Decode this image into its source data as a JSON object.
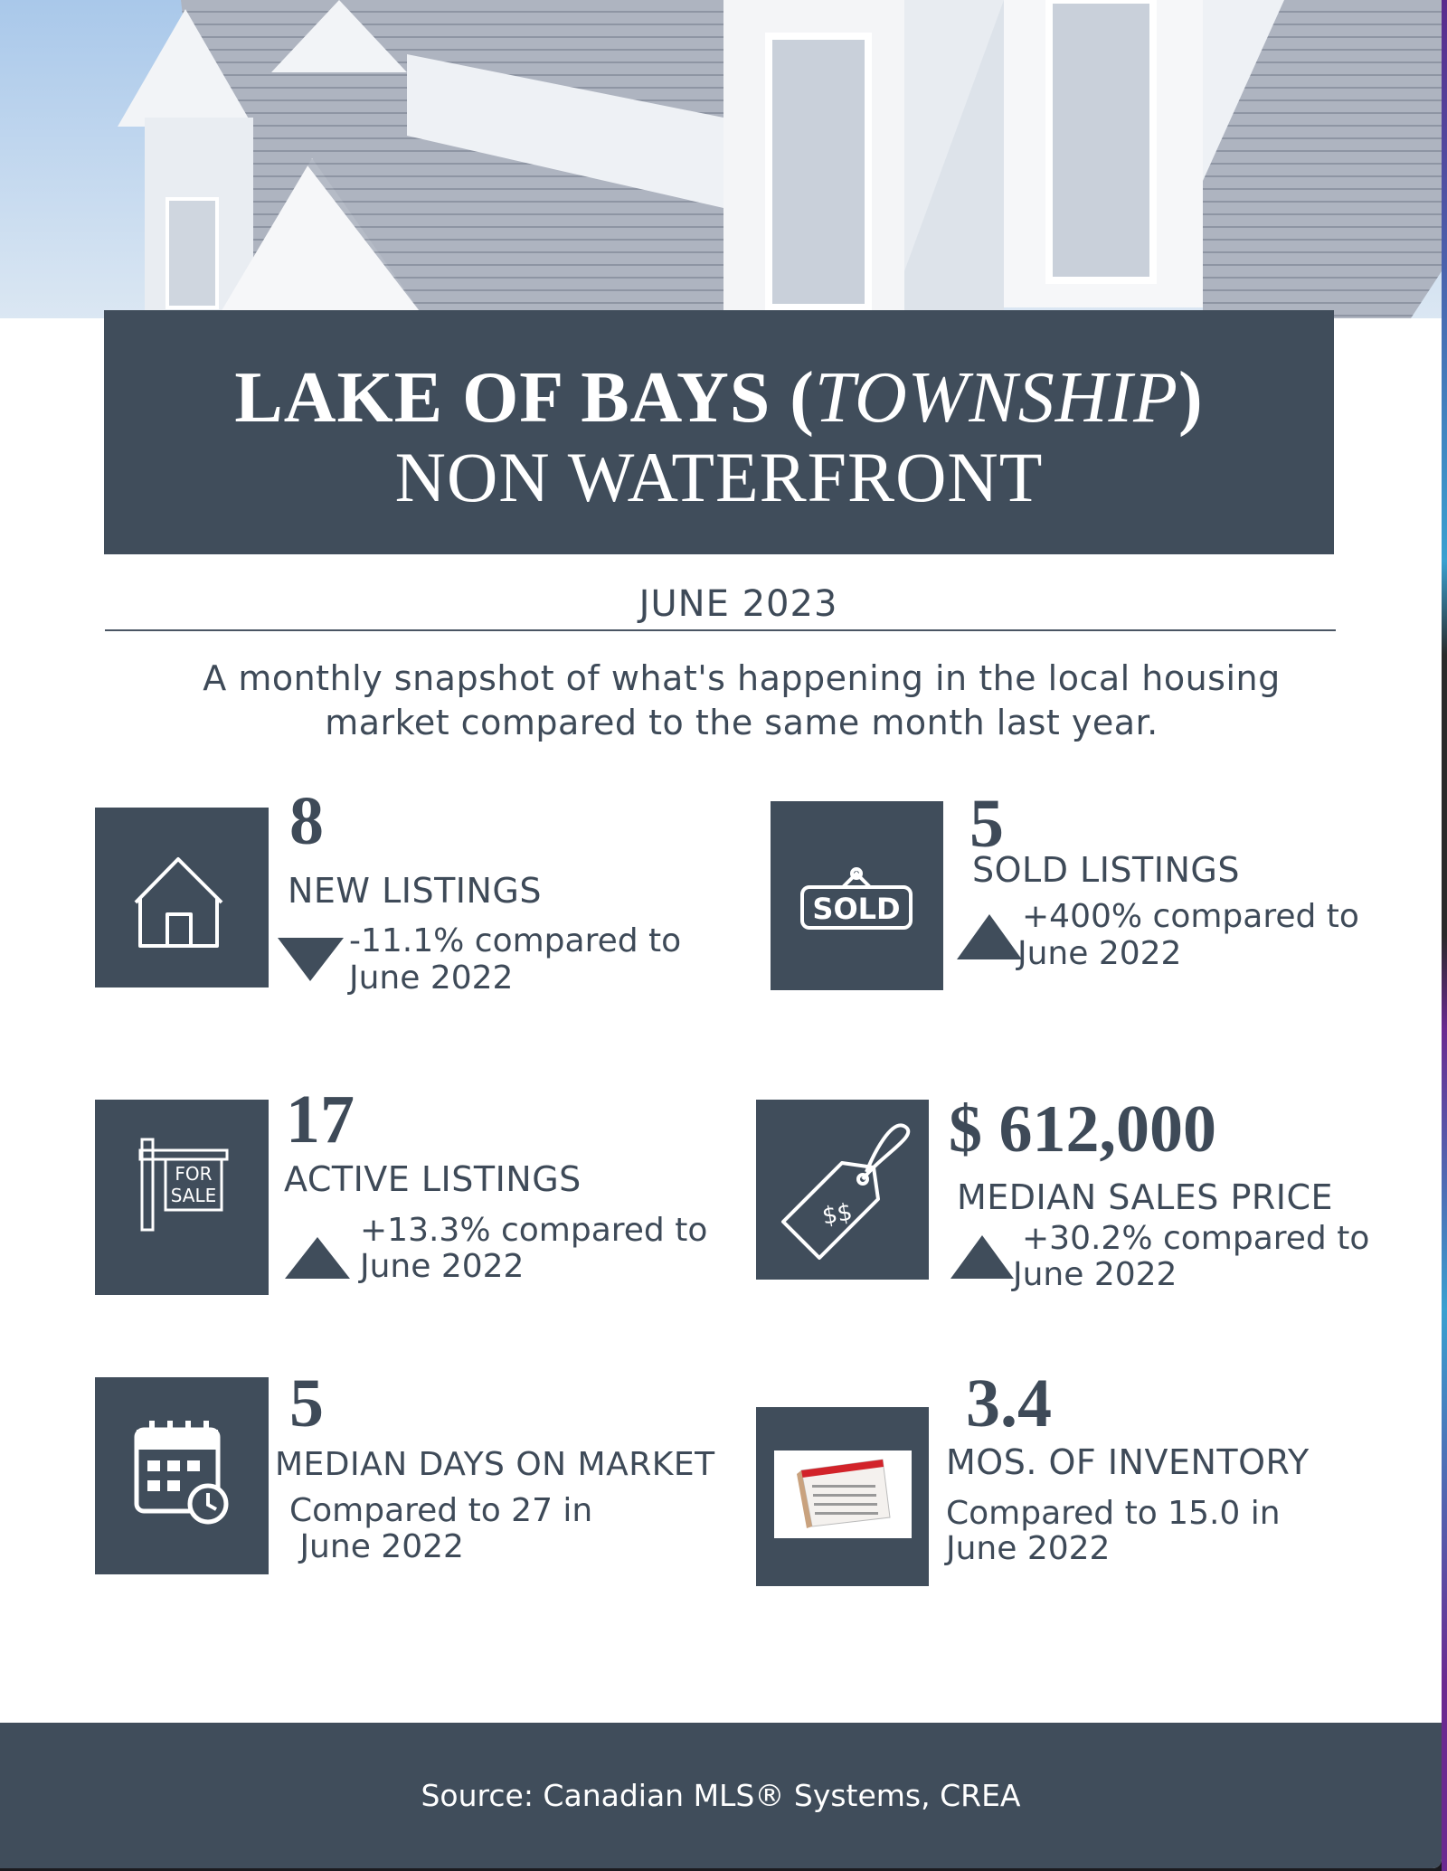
{
  "header": {
    "title_bold": "LAKE OF BAYS (",
    "title_italic": "TOWNSHIP",
    "title_close": ")",
    "subtitle": "NON WATERFRONT"
  },
  "month": "JUNE 2023",
  "intro": "A monthly snapshot of what's happening in the local housing market compared to the same month last year.",
  "colors": {
    "primary": "#404d5b",
    "text": "#3e4a58",
    "background": "#ffffff"
  },
  "stats": [
    {
      "value": "8",
      "label": "NEW  LISTINGS",
      "line1": "-11.1% compared to",
      "line2": "June 2022",
      "trend": "down",
      "icon": "house-icon"
    },
    {
      "value": "5",
      "label": "SOLD LISTINGS",
      "line1": "+400% compared to",
      "line2": "June 2022",
      "trend": "up",
      "icon": "sold-sign-icon"
    },
    {
      "value": "17",
      "label": "ACTIVE LISTINGS",
      "line1": "+13.3% compared to",
      "line2": "June  2022",
      "trend": "up",
      "icon": "for-sale-sign-icon"
    },
    {
      "value": "$ 612,000",
      "label": "MEDIAN SALES PRICE",
      "line1": "+30.2% compared to",
      "line2": "June  2022",
      "trend": "up",
      "icon": "price-tag-icon"
    },
    {
      "value": "5",
      "label": "MEDIAN DAYS ON MARKET",
      "line1": "Compared to 27 in",
      "line2": " June 2022",
      "icon": "calendar-clock-icon"
    },
    {
      "value": "3.4",
      "label": "MOS. OF INVENTORY",
      "line1": "Compared to 15.0 in",
      "line2": "June 2022",
      "icon": "desk-calendar-icon"
    }
  ],
  "tag_text": "$$",
  "sold_text": "SOLD",
  "for_sale_text": [
    "FOR",
    "SALE"
  ],
  "footer": "Source: Canadian MLS® Systems, CREA"
}
